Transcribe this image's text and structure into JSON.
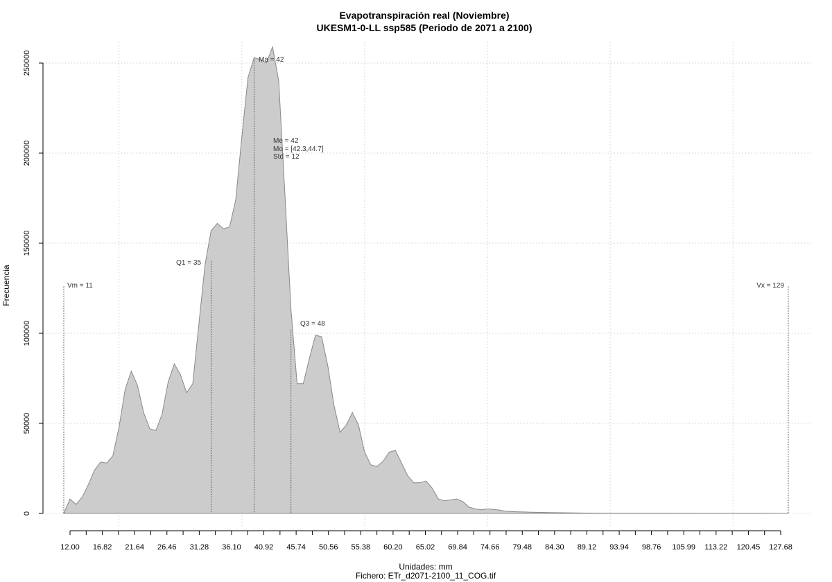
{
  "chart_data": {
    "type": "area",
    "title": "Evapotranspiración real (Noviembre)",
    "subtitle": "UKESM1-0-LL ssp585 (Periodo de 2071 a 2100)",
    "xlabel": "Unidades: mm",
    "caption": "Fichero: ETr_d2071-2100_11_COG.tif",
    "ylabel": "Frecuencia",
    "xlim": [
      11,
      129
    ],
    "ylim": [
      0,
      260000
    ],
    "yticks": [
      0,
      50000,
      100000,
      150000,
      200000,
      250000
    ],
    "yticklabels": [
      "0",
      "50000",
      "100000",
      "150000",
      "200000",
      "250000"
    ],
    "xtick_labels": [
      "12.00",
      "16.82",
      "21.64",
      "26.46",
      "31.28",
      "36.10",
      "40.92",
      "45.74",
      "50.56",
      "55.38",
      "60.20",
      "65.02",
      "69.84",
      "74.66",
      "79.48",
      "84.30",
      "89.12",
      "93.94",
      "98.76",
      "105.99",
      "113.22",
      "120.45",
      "127.68"
    ],
    "grid": true,
    "fill_color": "#cccccc",
    "line_color": "#888888",
    "x": [
      11,
      12,
      13,
      14,
      15,
      16,
      17,
      18,
      19,
      20,
      21,
      22,
      23,
      24,
      25,
      26,
      27,
      28,
      29,
      30,
      31,
      32,
      33,
      34,
      35,
      36,
      37,
      38,
      39,
      40,
      41,
      42,
      43,
      44,
      45,
      46,
      47,
      48,
      49,
      50,
      51,
      52,
      53,
      54,
      55,
      56,
      57,
      58,
      59,
      60,
      61,
      62,
      63,
      64,
      65,
      66,
      67,
      68,
      69,
      70,
      71,
      72,
      73,
      74,
      75,
      76,
      77,
      78,
      79,
      80,
      81,
      82,
      83,
      84,
      85,
      86,
      87,
      88,
      90,
      92,
      94,
      96,
      98,
      100,
      105,
      110,
      115,
      120,
      125,
      129
    ],
    "values": [
      0,
      8000,
      5000,
      9000,
      16000,
      24000,
      28500,
      28000,
      32000,
      48000,
      69000,
      79000,
      71000,
      56000,
      47000,
      46000,
      55000,
      73000,
      83000,
      77000,
      67000,
      72000,
      105000,
      138000,
      157000,
      161000,
      158000,
      159000,
      174000,
      209000,
      242000,
      253000,
      252000,
      250000,
      259000,
      240000,
      178000,
      113000,
      72000,
      72000,
      86000,
      99000,
      98000,
      82000,
      60000,
      45000,
      49000,
      56000,
      49000,
      34000,
      27000,
      26000,
      29000,
      34000,
      35000,
      28000,
      21000,
      17000,
      17000,
      18000,
      14000,
      8000,
      7000,
      7500,
      8000,
      6500,
      3500,
      2500,
      2000,
      2500,
      2200,
      1800,
      1200,
      1000,
      900,
      800,
      700,
      600,
      500,
      400,
      300,
      200,
      150,
      100,
      80,
      60,
      40,
      30,
      20,
      0
    ],
    "annotations": {
      "min_label": "Vm = 11",
      "max_label": "Vx = 129",
      "q1_label": "Q1 = 35",
      "mean_label": "Ma = 42",
      "q3_label": "Q3 = 48",
      "me_label": "Me = 42",
      "mo_label": "Mo = [42.3,44.7]",
      "std_label": "Std = 12"
    },
    "markers": {
      "min": 11,
      "q1": 35,
      "mean": 42,
      "q3": 48,
      "max": 129
    }
  }
}
